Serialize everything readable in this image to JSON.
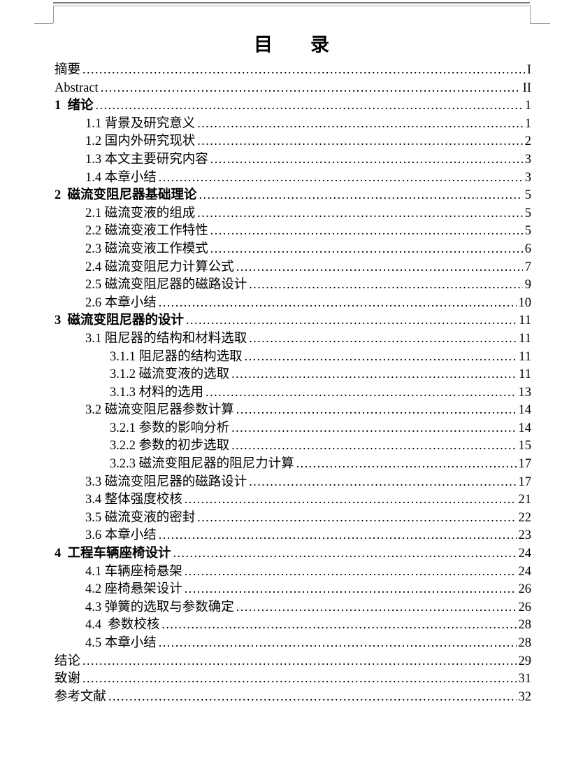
{
  "document": {
    "title": "目　　录"
  },
  "toc_entries": [
    {
      "label": "摘要",
      "page": "I",
      "level": 0,
      "bold": false
    },
    {
      "label": "Abstract",
      "page": "II",
      "level": 0,
      "bold": false
    },
    {
      "label": "1  绪论",
      "page": "1",
      "level": 0,
      "bold": true
    },
    {
      "label": "1.1 背景及研究意义",
      "page": "1",
      "level": 1,
      "bold": false
    },
    {
      "label": "1.2 国内外研究现状",
      "page": "2",
      "level": 1,
      "bold": false
    },
    {
      "label": "1.3 本文主要研究内容",
      "page": "3",
      "level": 1,
      "bold": false
    },
    {
      "label": "1.4 本章小结",
      "page": "3",
      "level": 1,
      "bold": false
    },
    {
      "label": "2  磁流变阻尼器基础理论",
      "page": "5",
      "level": 0,
      "bold": true
    },
    {
      "label": "2.1 磁流变液的组成",
      "page": "5",
      "level": 1,
      "bold": false
    },
    {
      "label": "2.2 磁流变液工作特性",
      "page": "5",
      "level": 1,
      "bold": false
    },
    {
      "label": "2.3 磁流变液工作模式",
      "page": "6",
      "level": 1,
      "bold": false
    },
    {
      "label": "2.4 磁流变阻尼力计算公式",
      "page": "7",
      "level": 1,
      "bold": false
    },
    {
      "label": "2.5 磁流变阻尼器的磁路设计",
      "page": "9",
      "level": 1,
      "bold": false
    },
    {
      "label": "2.6 本章小结",
      "page": "10",
      "level": 1,
      "bold": false
    },
    {
      "label": "3  磁流变阻尼器的设计",
      "page": "11",
      "level": 0,
      "bold": true
    },
    {
      "label": "3.1 阻尼器的结构和材料选取",
      "page": "11",
      "level": 1,
      "bold": false
    },
    {
      "label": "3.1.1 阻尼器的结构选取",
      "page": "11",
      "level": 2,
      "bold": false
    },
    {
      "label": "3.1.2 磁流变液的选取",
      "page": "11",
      "level": 2,
      "bold": false
    },
    {
      "label": "3.1.3 材料的选用",
      "page": "13",
      "level": 2,
      "bold": false
    },
    {
      "label": "3.2 磁流变阻尼器参数计算",
      "page": "14",
      "level": 1,
      "bold": false
    },
    {
      "label": "3.2.1 参数的影响分析",
      "page": "14",
      "level": 2,
      "bold": false
    },
    {
      "label": "3.2.2 参数的初步选取",
      "page": "15",
      "level": 2,
      "bold": false
    },
    {
      "label": "3.2.3 磁流变阻尼器的阻尼力计算",
      "page": "17",
      "level": 2,
      "bold": false
    },
    {
      "label": "3.3 磁流变阻尼器的磁路设计",
      "page": "17",
      "level": 1,
      "bold": false
    },
    {
      "label": "3.4 整体强度校核",
      "page": "21",
      "level": 1,
      "bold": false
    },
    {
      "label": "3.5 磁流变液的密封",
      "page": "22",
      "level": 1,
      "bold": false
    },
    {
      "label": "3.6 本章小结",
      "page": "23",
      "level": 1,
      "bold": false
    },
    {
      "label": "4  工程车辆座椅设计",
      "page": "24",
      "level": 0,
      "bold": true
    },
    {
      "label": "4.1 车辆座椅悬架",
      "page": "24",
      "level": 1,
      "bold": false
    },
    {
      "label": "4.2 座椅悬架设计",
      "page": "26",
      "level": 1,
      "bold": false
    },
    {
      "label": "4.3 弹簧的选取与参数确定",
      "page": "26",
      "level": 1,
      "bold": false
    },
    {
      "label": "4.4  参数校核",
      "page": "28",
      "level": 1,
      "bold": false
    },
    {
      "label": "4.5 本章小结",
      "page": "28",
      "level": 1,
      "bold": false
    },
    {
      "label": "结论",
      "page": "29",
      "level": 0,
      "bold": false
    },
    {
      "label": "致谢",
      "page": "31",
      "level": 0,
      "bold": false
    },
    {
      "label": "参考文献",
      "page": "32",
      "level": 0,
      "bold": false
    }
  ]
}
